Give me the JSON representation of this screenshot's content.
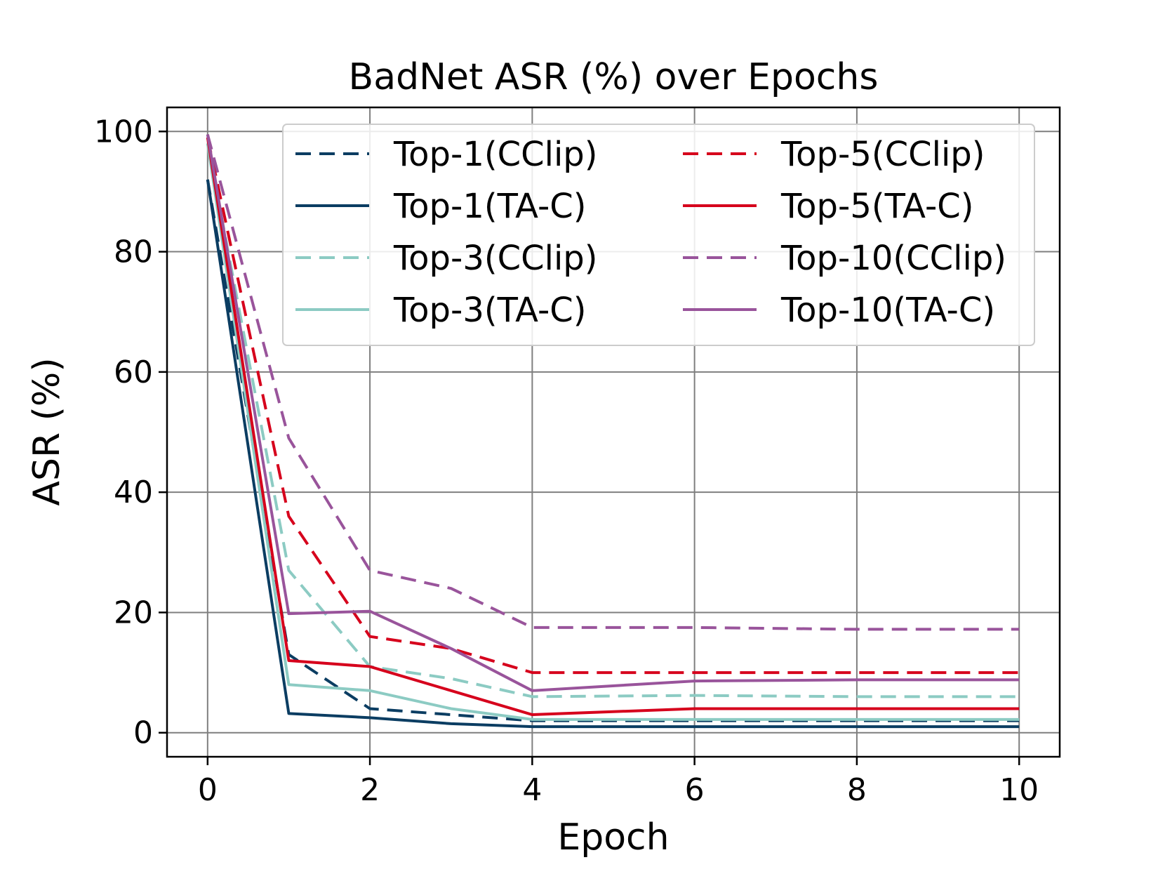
{
  "chart_data": {
    "type": "line",
    "title": "BadNet ASR (%) over Epochs",
    "xlabel": "Epoch",
    "ylabel": "ASR (%)",
    "xlim": [
      -0.5,
      10.5
    ],
    "ylim": [
      -4,
      104
    ],
    "xticks": [
      0,
      2,
      4,
      6,
      8,
      10
    ],
    "yticks": [
      0,
      20,
      40,
      60,
      80,
      100
    ],
    "grid": true,
    "legend_position": "top-right",
    "legend_columns": 2,
    "x": [
      0,
      1,
      2,
      3,
      4,
      6,
      8,
      10
    ],
    "series": [
      {
        "name": "Top-1(CClip)",
        "color": "#0b3d62",
        "dash": "dashed",
        "values": [
          92,
          13,
          4,
          3,
          2,
          2,
          2,
          2
        ]
      },
      {
        "name": "Top-1(TA-C)",
        "color": "#0b3d62",
        "dash": "solid",
        "values": [
          92,
          3.2,
          2.5,
          1.5,
          1,
          1,
          1,
          1
        ]
      },
      {
        "name": "Top-3(CClip)",
        "color": "#8ccbc3",
        "dash": "dashed",
        "values": [
          98,
          27,
          11,
          9,
          6,
          6.2,
          6,
          6
        ]
      },
      {
        "name": "Top-3(TA-C)",
        "color": "#8ccbc3",
        "dash": "solid",
        "values": [
          98,
          8,
          7,
          4,
          2.2,
          2.2,
          2.2,
          2.2
        ]
      },
      {
        "name": "Top-5(CClip)",
        "color": "#d6001c",
        "dash": "dashed",
        "values": [
          99,
          36,
          16,
          14,
          10,
          10,
          10,
          10
        ]
      },
      {
        "name": "Top-5(TA-C)",
        "color": "#d6001c",
        "dash": "solid",
        "values": [
          99,
          12,
          11,
          7,
          3,
          4,
          4,
          4
        ]
      },
      {
        "name": "Top-10(CClip)",
        "color": "#99549b",
        "dash": "dashed",
        "values": [
          99.5,
          49,
          27,
          24,
          17.5,
          17.5,
          17.2,
          17.2
        ]
      },
      {
        "name": "Top-10(TA-C)",
        "color": "#99549b",
        "dash": "solid",
        "values": [
          99.5,
          19.8,
          20.2,
          14,
          7,
          8.6,
          8.8,
          8.8
        ]
      }
    ]
  }
}
